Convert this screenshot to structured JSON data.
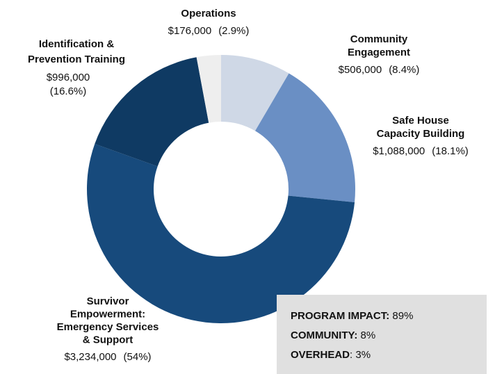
{
  "chart_data": {
    "type": "donut",
    "categories": [
      [
        "Community",
        "Engagement"
      ],
      [
        "Safe House",
        "Capacity Building"
      ],
      [
        "Survivor",
        "Empowerment:",
        "Emergency Services",
        "& Support"
      ],
      [
        "Identification &",
        "Prevention Training"
      ],
      [
        "Operations"
      ]
    ],
    "values": [
      506000,
      1088000,
      3234000,
      996000,
      176000
    ],
    "value_labels": [
      "$506,000",
      "$1,088,000",
      "$3,234,000",
      "$996,000",
      "$176,000"
    ],
    "percent_labels": [
      "(8.4%)",
      "(18.1%)",
      "(54%)",
      "(16.6%)",
      "(2.9%)"
    ],
    "colors": [
      "#cfd8e6",
      "#6a8fc4",
      "#174a7c",
      "#0f3a63",
      "#eeeeee"
    ]
  },
  "summary": [
    {
      "label": "PROGRAM IMPACT:",
      "value": "89%"
    },
    {
      "label": "COMMUNITY:",
      "value": "8%"
    },
    {
      "label": "OVERHEAD",
      "value": ": 3%"
    }
  ]
}
